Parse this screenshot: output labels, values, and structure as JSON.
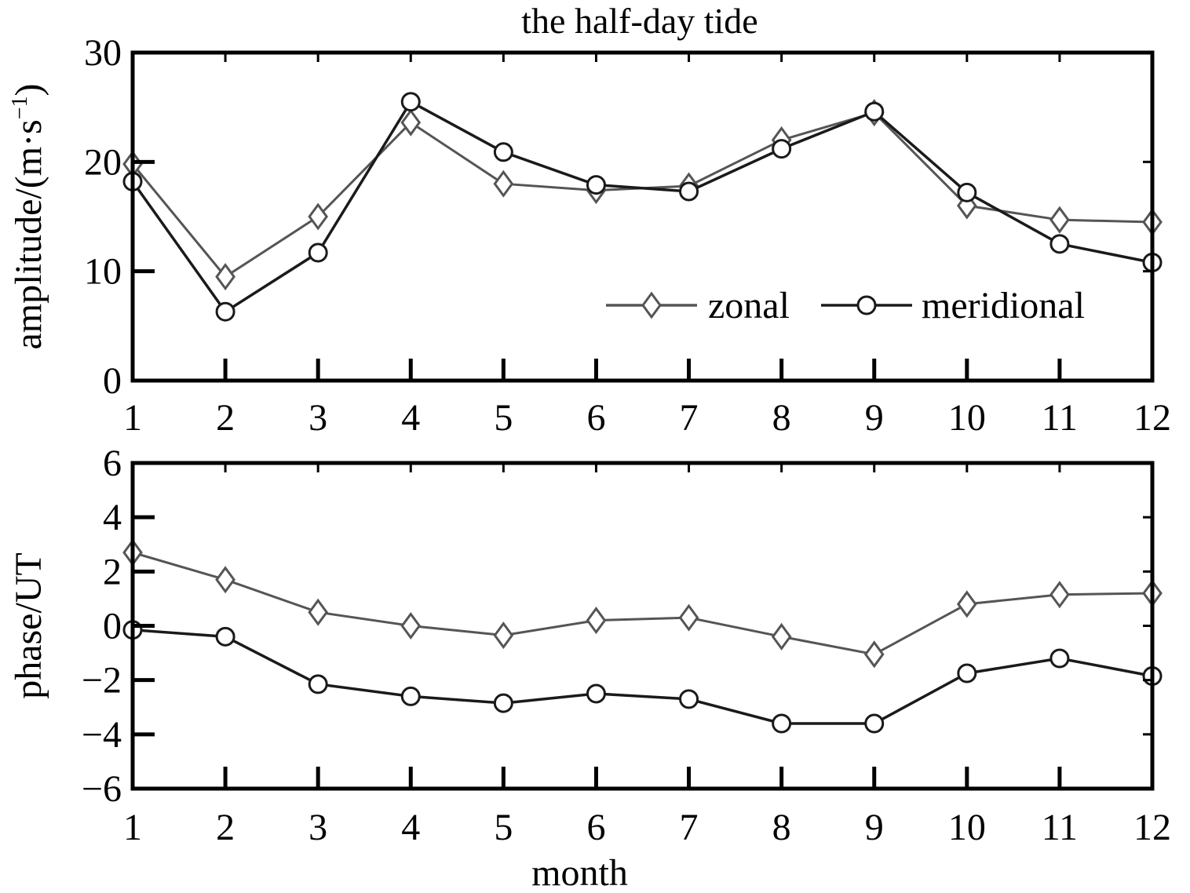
{
  "figure_title": "the half-day tide",
  "colors": {
    "zonal": "#555555",
    "meridional": "#1a1a1a",
    "axes": "#000000"
  },
  "chart_data": [
    {
      "type": "line",
      "title": "the half-day tide",
      "xlabel": "",
      "ylabel": "amplitude/(m·s",
      "ylabel_sup": "−1",
      "ylabel_close": ")",
      "x": [
        1,
        2,
        3,
        4,
        5,
        6,
        7,
        8,
        9,
        10,
        11,
        12
      ],
      "x_ticks": [
        "1",
        "2",
        "3",
        "4",
        "5",
        "6",
        "7",
        "8",
        "9",
        "10",
        "11",
        "12"
      ],
      "xlim": [
        1,
        12
      ],
      "ylim": [
        0,
        30
      ],
      "y_ticks": [
        {
          "value": 0,
          "label": "0"
        },
        {
          "value": 10,
          "label": "10"
        },
        {
          "value": 20,
          "label": "20"
        },
        {
          "value": 30,
          "label": "30"
        }
      ],
      "grid": false,
      "legend_position": "bottom-right",
      "series": [
        {
          "name": "zonal",
          "marker": "diamond",
          "values": [
            19.8,
            9.5,
            15.0,
            23.6,
            18.0,
            17.4,
            17.8,
            22.0,
            24.5,
            16.0,
            14.7,
            14.5
          ]
        },
        {
          "name": "meridional",
          "marker": "circle",
          "values": [
            18.2,
            6.3,
            11.7,
            25.5,
            20.9,
            17.9,
            17.3,
            21.2,
            24.6,
            17.2,
            12.5,
            10.8
          ]
        }
      ]
    },
    {
      "type": "line",
      "title": "",
      "xlabel": "month",
      "ylabel": "phase/UT",
      "x": [
        1,
        2,
        3,
        4,
        5,
        6,
        7,
        8,
        9,
        10,
        11,
        12
      ],
      "x_ticks": [
        "1",
        "2",
        "3",
        "4",
        "5",
        "6",
        "7",
        "8",
        "9",
        "10",
        "11",
        "12"
      ],
      "xlim": [
        1,
        12
      ],
      "ylim": [
        -6,
        6
      ],
      "y_ticks": [
        {
          "value": -6,
          "label": "−6"
        },
        {
          "value": -4,
          "label": "−4"
        },
        {
          "value": -2,
          "label": "−2"
        },
        {
          "value": 0,
          "label": "0"
        },
        {
          "value": 2,
          "label": "2"
        },
        {
          "value": 4,
          "label": "4"
        },
        {
          "value": 6,
          "label": "6"
        }
      ],
      "grid": false,
      "series": [
        {
          "name": "zonal",
          "marker": "diamond",
          "values": [
            2.7,
            1.7,
            0.5,
            0.0,
            -0.35,
            0.2,
            0.3,
            -0.4,
            -1.05,
            0.8,
            1.15,
            1.2
          ]
        },
        {
          "name": "meridional",
          "marker": "circle",
          "values": [
            -0.15,
            -0.4,
            -2.15,
            -2.6,
            -2.85,
            -2.5,
            -2.7,
            -3.6,
            -3.6,
            -1.75,
            -1.2,
            -1.85
          ]
        }
      ]
    }
  ]
}
